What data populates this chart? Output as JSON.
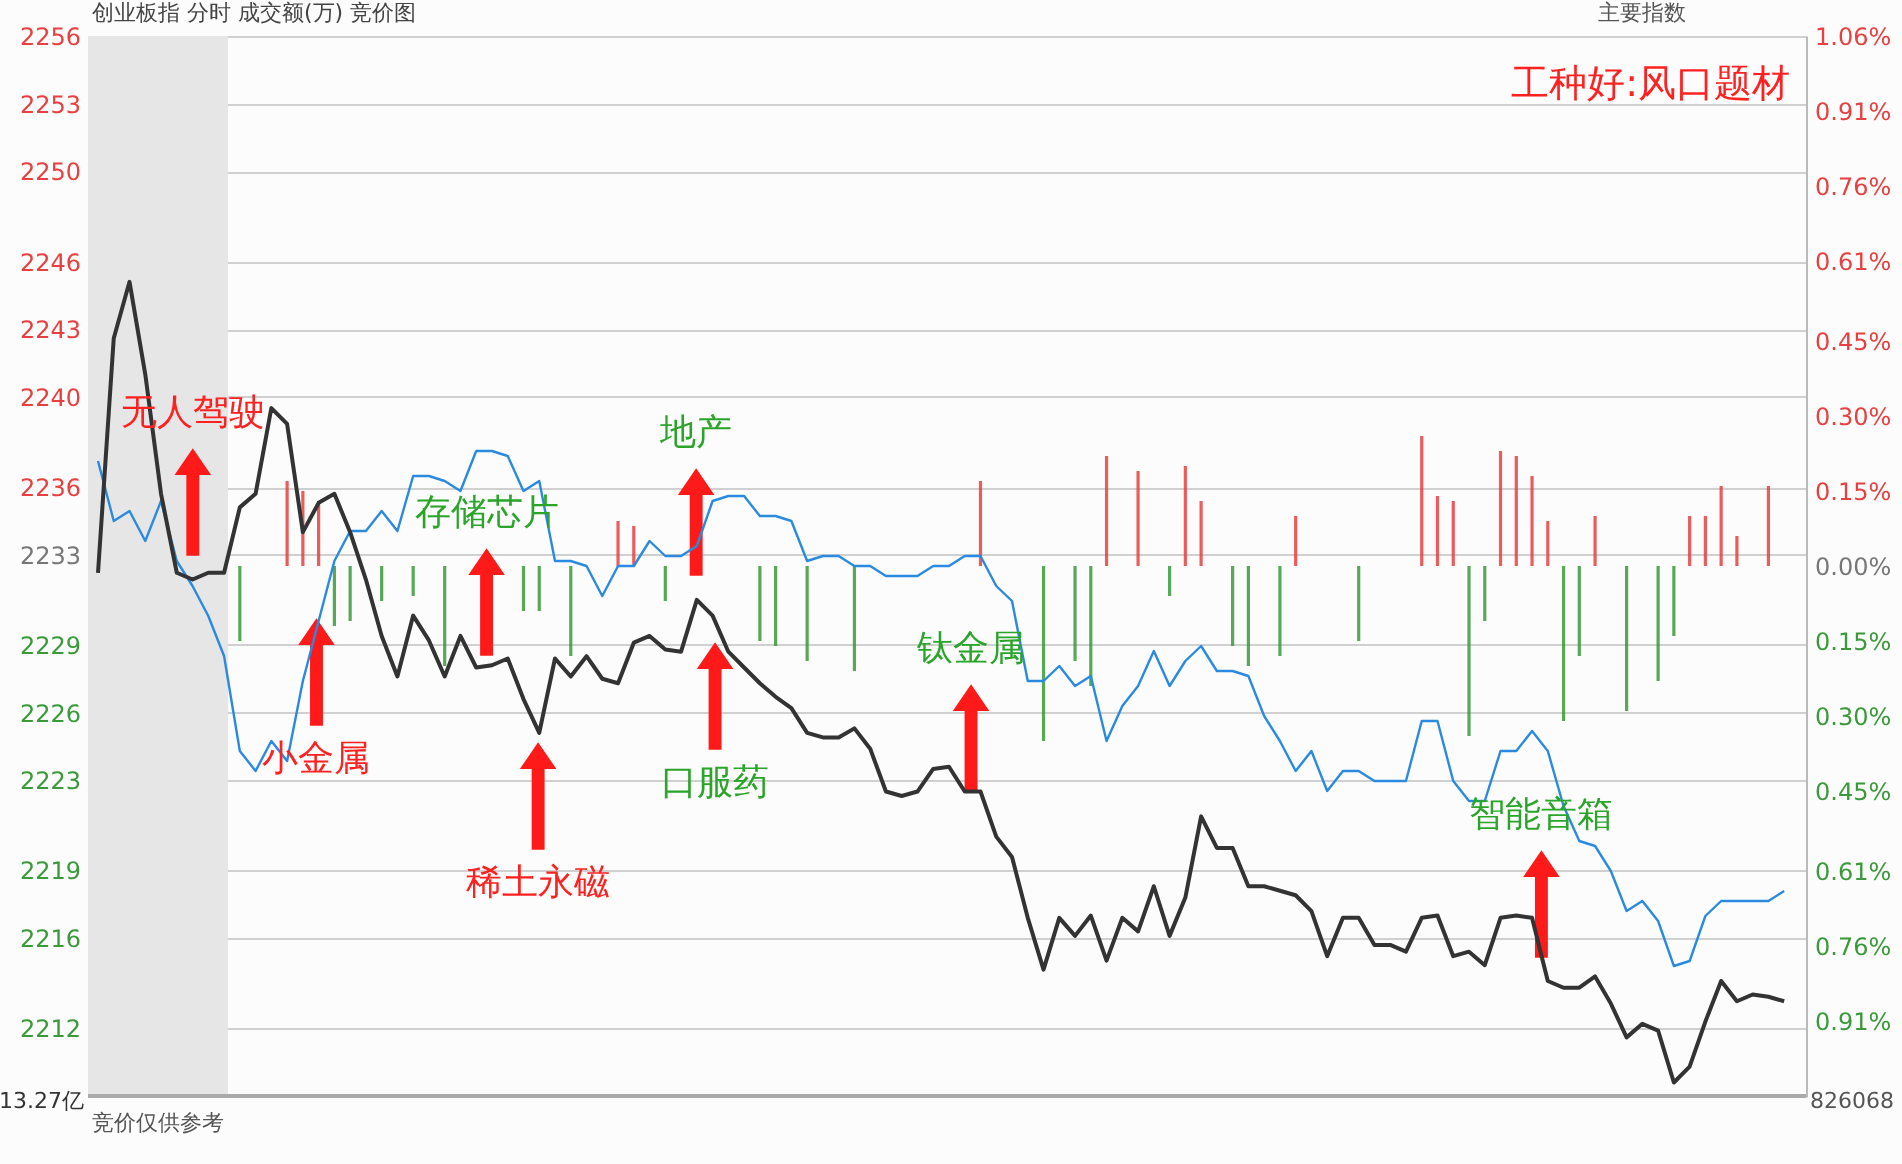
{
  "chart_data": {
    "type": "line",
    "title": "创业板指  分时 成交额(万) 竞价图",
    "categories": [
      null,
      null,
      null,
      null,
      null,
      null,
      null,
      null,
      null,
      null,
      null,
      null,
      null,
      null,
      null,
      null,
      null,
      null,
      null,
      null,
      null,
      null,
      null,
      null,
      null,
      null,
      null,
      null,
      null,
      null,
      null,
      null,
      null,
      null,
      null,
      null,
      null,
      null,
      null,
      null,
      null,
      null,
      null,
      null,
      null,
      null,
      null,
      null,
      null,
      null,
      null,
      null,
      null,
      null,
      null,
      null,
      null,
      null,
      null,
      null,
      null,
      null,
      null,
      null,
      null,
      null,
      null,
      null,
      null,
      null,
      null,
      null,
      null,
      null,
      null,
      null,
      null,
      null,
      null,
      null,
      null,
      null,
      null,
      null,
      null,
      null,
      null,
      null,
      null,
      null,
      null,
      null,
      null,
      null,
      null,
      null,
      null,
      null,
      null,
      null,
      null,
      null,
      null,
      null,
      null,
      null,
      null,
      null
    ],
    "tick_labels": "y",
    "grid": "y",
    "ylim": [
      2209,
      2256
    ],
    "yticks": [
      2212,
      2216,
      2219,
      2223,
      2226,
      2229,
      2233,
      2236,
      2240,
      2243,
      2246,
      2250,
      2253,
      2256
    ],
    "y2lim": [
      -1.06,
      1.06
    ],
    "y2ticks": [
      {
        "value": -0.91,
        "label": "0.91%"
      },
      {
        "value": -0.76,
        "label": "0.76%"
      },
      {
        "value": -0.61,
        "label": "0.61%"
      },
      {
        "value": -0.45,
        "label": "0.45%"
      },
      {
        "value": -0.3,
        "label": "0.30%"
      },
      {
        "value": -0.15,
        "label": "0.15%"
      },
      {
        "value": 0,
        "label": "0.00%"
      },
      {
        "value": 0.15,
        "label": "0.15%"
      },
      {
        "value": 0.3,
        "label": "0.30%"
      },
      {
        "value": 0.45,
        "label": "0.45%"
      },
      {
        "value": 0.61,
        "label": "0.61%"
      },
      {
        "value": 0.76,
        "label": "0.76%"
      },
      {
        "value": 0.91,
        "label": "0.91%"
      },
      {
        "value": 1.06,
        "label": "1.06%"
      }
    ],
    "series": [
      {
        "type": "bar",
        "axis": "y2",
        "color": "#e84040",
        "values": [
          null,
          null,
          null,
          null,
          null,
          null,
          null,
          null,
          null,
          null,
          null,
          null,
          0.17,
          0.15,
          0.13,
          null,
          null,
          null,
          null,
          null,
          null,
          null,
          null,
          null,
          null,
          null,
          null,
          null,
          null,
          null,
          null,
          null,
          null,
          0.09,
          0.08,
          null,
          null,
          null,
          null,
          null,
          null,
          null,
          null,
          null,
          null,
          null,
          null,
          null,
          null,
          null,
          null,
          null,
          null,
          null,
          null,
          null,
          0.17,
          null,
          null,
          null,
          null,
          null,
          null,
          null,
          0.22,
          null,
          0.19,
          null,
          null,
          0.2,
          0.13,
          null,
          null,
          null,
          null,
          null,
          0.1,
          null,
          null,
          null,
          null,
          null,
          null,
          null,
          0.26,
          0.14,
          0.13,
          null,
          null,
          0.23,
          0.22,
          0.18,
          0.09,
          null,
          null,
          0.1,
          null,
          null,
          null,
          null,
          null,
          0.1,
          0.1,
          0.16,
          0.06,
          null,
          0.16,
          null
        ]
      },
      {
        "type": "bar",
        "axis": "y2",
        "color": "#3a9a3a",
        "values": [
          null,
          null,
          null,
          null,
          null,
          null,
          null,
          null,
          null,
          -0.15,
          null,
          null,
          null,
          null,
          null,
          -0.12,
          -0.11,
          null,
          -0.07,
          null,
          -0.06,
          null,
          -0.2,
          null,
          null,
          null,
          null,
          -0.09,
          -0.09,
          null,
          -0.18,
          null,
          null,
          null,
          null,
          null,
          -0.07,
          null,
          null,
          null,
          null,
          null,
          -0.15,
          -0.16,
          null,
          -0.19,
          null,
          null,
          -0.21,
          null,
          null,
          null,
          null,
          null,
          null,
          null,
          null,
          null,
          null,
          null,
          -0.35,
          null,
          -0.19,
          -0.24,
          null,
          null,
          null,
          null,
          -0.06,
          null,
          null,
          null,
          -0.16,
          -0.2,
          null,
          -0.18,
          null,
          null,
          null,
          null,
          -0.15,
          null,
          null,
          null,
          null,
          null,
          null,
          -0.34,
          -0.11,
          null,
          null,
          null,
          null,
          -0.31,
          -0.18,
          null,
          null,
          -0.29,
          null,
          -0.23,
          -0.14,
          null,
          null,
          null,
          null,
          null,
          null,
          null
        ]
      },
      {
        "axis": "y2",
        "color": "#2a8ae0",
        "values": [
          0.21,
          0.09,
          0.11,
          0.05,
          0.13,
          0.01,
          -0.04,
          -0.1,
          -0.18,
          -0.37,
          -0.41,
          -0.35,
          -0.39,
          -0.23,
          -0.11,
          0.01,
          0.07,
          0.07,
          0.11,
          0.07,
          0.18,
          0.18,
          0.17,
          0.15,
          0.23,
          0.23,
          0.22,
          0.15,
          0.17,
          0.01,
          0.01,
          0.0,
          -0.06,
          0.0,
          0.0,
          0.05,
          0.02,
          0.02,
          0.04,
          0.13,
          0.14,
          0.14,
          0.1,
          0.1,
          0.09,
          0.01,
          0.02,
          0.02,
          0.0,
          0.0,
          -0.02,
          -0.02,
          -0.02,
          0.0,
          0.0,
          0.02,
          0.02,
          -0.04,
          -0.07,
          -0.23,
          -0.23,
          -0.2,
          -0.24,
          -0.22,
          -0.35,
          -0.28,
          -0.24,
          -0.17,
          -0.24,
          -0.19,
          -0.16,
          -0.21,
          -0.21,
          -0.22,
          -0.3,
          -0.35,
          -0.41,
          -0.37,
          -0.45,
          -0.41,
          -0.41,
          -0.43,
          -0.43,
          -0.43,
          -0.31,
          -0.31,
          -0.43,
          -0.47,
          -0.47,
          -0.37,
          -0.37,
          -0.33,
          -0.37,
          -0.48,
          -0.55,
          -0.56,
          -0.61,
          -0.69,
          -0.67,
          -0.71,
          -0.8,
          -0.79,
          -0.7,
          -0.67,
          -0.67,
          -0.67,
          -0.67,
          -0.65
        ]
      },
      {
        "color": "#333333",
        "values": [
          2232.2,
          2242.6,
          2245.1,
          2241.0,
          2235.7,
          2232.2,
          2231.9,
          2232.2,
          2232.2,
          2235.1,
          2235.7,
          2239.5,
          2238.8,
          2234.0,
          2235.3,
          2235.7,
          2234.0,
          2231.9,
          2229.4,
          2227.6,
          2230.3,
          2229.2,
          2227.6,
          2229.4,
          2228.0,
          2228.1,
          2228.4,
          2226.6,
          2225.1,
          2228.4,
          2227.6,
          2228.5,
          2227.5,
          2227.3,
          2229.1,
          2229.4,
          2228.8,
          2228.7,
          2231.0,
          2230.3,
          2228.7,
          2228.0,
          2227.3,
          2226.7,
          2226.2,
          2225.1,
          2224.9,
          2224.9,
          2225.3,
          2224.4,
          2222.5,
          2222.3,
          2222.5,
          2223.5,
          2223.6,
          2222.5,
          2222.5,
          2220.5,
          2219.6,
          2216.9,
          2214.6,
          2216.9,
          2216.1,
          2217.0,
          2215.0,
          2216.9,
          2216.3,
          2218.3,
          2216.1,
          2217.8,
          2221.4,
          2220.0,
          2220.0,
          2218.3,
          2218.3,
          2218.1,
          2217.9,
          2217.2,
          2215.2,
          2216.9,
          2216.9,
          2215.7,
          2215.7,
          2215.4,
          2216.9,
          2217.0,
          2215.2,
          2215.4,
          2214.8,
          2216.9,
          2217.0,
          2216.9,
          2214.1,
          2213.8,
          2213.8,
          2214.3,
          2213.1,
          2211.6,
          2212.2,
          2211.9,
          2209.6,
          2210.3,
          2212.3,
          2214.1,
          2213.2,
          2213.5,
          2213.4,
          2213.2
        ]
      }
    ],
    "annotations": [
      "工种好:风口题材",
      "主要指数",
      "13.27亿",
      "竞价仅供参考",
      "826068",
      "无人驾驶",
      "小金属",
      "存储芯片",
      "稀土永磁",
      "地产",
      "口服药",
      "钛金属",
      "智能音箱"
    ]
  }
}
